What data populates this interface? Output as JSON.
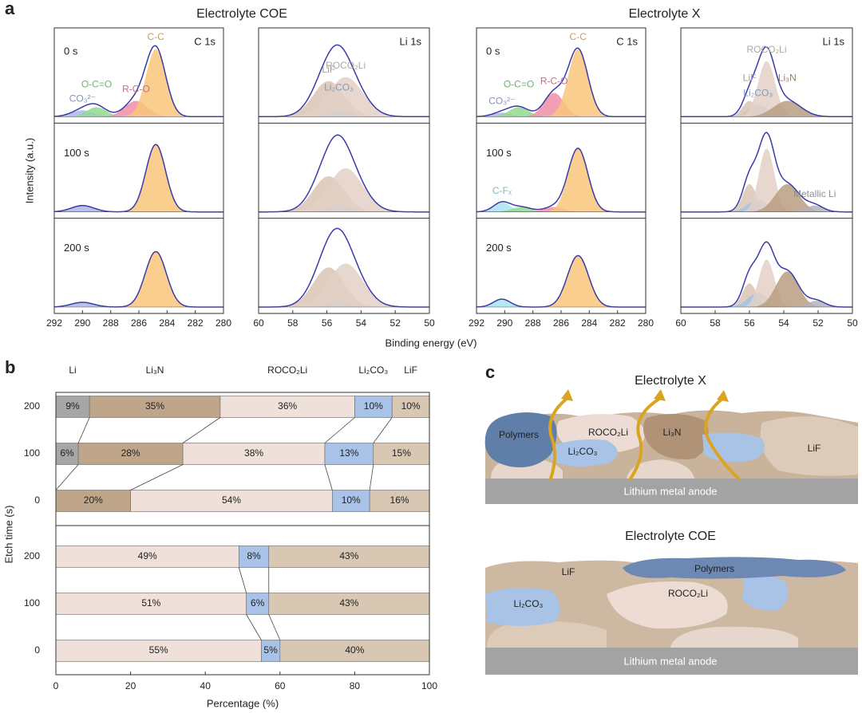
{
  "panel_labels": [
    "a",
    "b",
    "c"
  ],
  "chart_data": [
    {
      "type": "xps",
      "title": "Electrolyte COE",
      "xlabel": "Binding energy (eV)",
      "ylabel": "Intensity (a.u.)",
      "panels": [
        {
          "label": "C 1s",
          "xlim": [
            292,
            280
          ],
          "xticks": [
            292,
            290,
            288,
            286,
            284,
            282,
            280
          ],
          "rows": [
            {
              "label": "0 s",
              "peaks": [
                {
                  "name": "CO₃²⁻",
                  "color": "#aab6e6",
                  "center": 290.0,
                  "height": 0.08,
                  "width": 0.8
                },
                {
                  "name": "O-C=O",
                  "color": "#8fdc8f",
                  "center": 289.0,
                  "height": 0.12,
                  "width": 0.7
                },
                {
                  "name": "R-C-O",
                  "color": "#f08ea6",
                  "center": 286.2,
                  "height": 0.2,
                  "width": 0.8
                },
                {
                  "name": "C-C",
                  "color": "#f9c67a",
                  "center": 284.8,
                  "height": 0.85,
                  "width": 0.7
                }
              ]
            },
            {
              "label": "100 s",
              "peaks": [
                {
                  "color": "#aab6e6",
                  "center": 290.0,
                  "height": 0.08,
                  "width": 0.8
                },
                {
                  "color": "#f9c67a",
                  "center": 284.8,
                  "height": 0.85,
                  "width": 0.7
                }
              ]
            },
            {
              "label": "200 s",
              "peaks": [
                {
                  "color": "#aab6e6",
                  "center": 290.0,
                  "height": 0.06,
                  "width": 0.8
                },
                {
                  "color": "#f9c67a",
                  "center": 284.8,
                  "height": 0.7,
                  "width": 0.75
                }
              ]
            }
          ]
        },
        {
          "label": "Li 1s",
          "xlim": [
            60,
            50
          ],
          "xticks": [
            60,
            58,
            56,
            54,
            52,
            50
          ],
          "rows": [
            {
              "peaks": [
                {
                  "name": "LiF",
                  "color": "#d9c6b5",
                  "center": 55.9,
                  "height": 0.45,
                  "width": 0.9
                },
                {
                  "name": "Li₂CO₃",
                  "color": "#9fc4ea",
                  "center": 55.3,
                  "height": 0.08,
                  "width": 0.6
                },
                {
                  "name": "ROCO₂Li",
                  "color": "#e3d0c5",
                  "center": 54.9,
                  "height": 0.5,
                  "width": 1.0
                }
              ]
            },
            {
              "peaks": [
                {
                  "color": "#d9c6b5",
                  "center": 55.9,
                  "height": 0.45,
                  "width": 0.9
                },
                {
                  "color": "#9fc4ea",
                  "center": 55.3,
                  "height": 0.1,
                  "width": 0.6
                },
                {
                  "color": "#e3d0c5",
                  "center": 54.9,
                  "height": 0.55,
                  "width": 1.0
                }
              ]
            },
            {
              "peaks": [
                {
                  "color": "#d9c6b5",
                  "center": 55.9,
                  "height": 0.5,
                  "width": 0.9
                },
                {
                  "color": "#9fc4ea",
                  "center": 55.3,
                  "height": 0.08,
                  "width": 0.6
                },
                {
                  "color": "#e3d0c5",
                  "center": 54.9,
                  "height": 0.55,
                  "width": 1.0
                }
              ]
            }
          ]
        }
      ]
    },
    {
      "type": "xps",
      "title": "Electrolyte X",
      "panels": [
        {
          "label": "C 1s",
          "xlim": [
            292,
            280
          ],
          "xticks": [
            292,
            290,
            288,
            286,
            284,
            282,
            280
          ],
          "rows": [
            {
              "label": "0 s",
              "peaks": [
                {
                  "name": "CO₃²⁻",
                  "color": "#aab6e6",
                  "center": 290.2,
                  "height": 0.05,
                  "width": 0.7
                },
                {
                  "name": "O-C=O",
                  "color": "#8fdc8f",
                  "center": 289.0,
                  "height": 0.12,
                  "width": 0.7
                },
                {
                  "name": "R-C-O",
                  "color": "#f08ea6",
                  "center": 286.5,
                  "height": 0.3,
                  "width": 0.7
                },
                {
                  "name": "C-C",
                  "color": "#f9c67a",
                  "center": 284.8,
                  "height": 0.85,
                  "width": 0.7
                }
              ]
            },
            {
              "label": "100 s",
              "peaks": [
                {
                  "name": "C-Fₓ",
                  "color": "#a8e4f2",
                  "center": 290.2,
                  "height": 0.12,
                  "width": 0.6
                },
                {
                  "color": "#8fdc8f",
                  "center": 288.8,
                  "height": 0.06,
                  "width": 0.7
                },
                {
                  "color": "#f08ea6",
                  "center": 286.5,
                  "height": 0.06,
                  "width": 0.7
                },
                {
                  "color": "#f9c67a",
                  "center": 284.8,
                  "height": 0.8,
                  "width": 0.7
                }
              ]
            },
            {
              "label": "200 s",
              "peaks": [
                {
                  "color": "#a8e4f2",
                  "center": 290.2,
                  "height": 0.1,
                  "width": 0.6
                },
                {
                  "color": "#f9c67a",
                  "center": 284.8,
                  "height": 0.65,
                  "width": 0.75
                }
              ]
            }
          ]
        },
        {
          "label": "Li 1s",
          "xlim": [
            60,
            50
          ],
          "xticks": [
            60,
            58,
            56,
            54,
            52,
            50
          ],
          "rows": [
            {
              "peaks": [
                {
                  "name": "Li₂CO₃",
                  "color": "#9fc4ea",
                  "center": 55.5,
                  "height": 0.15,
                  "width": 0.6
                },
                {
                  "name": "LiF",
                  "color": "#d9c6b5",
                  "center": 56.0,
                  "height": 0.2,
                  "width": 0.4
                },
                {
                  "name": "ROCO₂Li",
                  "color": "#e3d0c5",
                  "center": 55.0,
                  "height": 0.7,
                  "width": 0.5
                },
                {
                  "name": "Li₃N",
                  "color": "#b99d80",
                  "center": 53.8,
                  "height": 0.2,
                  "width": 0.8
                }
              ]
            },
            {
              "peaks": [
                {
                  "color": "#d9c6b5",
                  "center": 56.0,
                  "height": 0.35,
                  "width": 0.4
                },
                {
                  "color": "#9fc4ea",
                  "center": 55.5,
                  "height": 0.15,
                  "width": 0.6
                },
                {
                  "color": "#e3d0c5",
                  "center": 55.0,
                  "height": 0.8,
                  "width": 0.45
                },
                {
                  "color": "#b99d80",
                  "center": 53.8,
                  "height": 0.35,
                  "width": 0.7
                },
                {
                  "name": "Metallic Li",
                  "color": "#b3b3bb",
                  "center": 52.2,
                  "height": 0.08,
                  "width": 0.5
                }
              ]
            },
            {
              "peaks": [
                {
                  "color": "#d9c6b5",
                  "center": 56.0,
                  "height": 0.3,
                  "width": 0.4
                },
                {
                  "color": "#9fc4ea",
                  "center": 55.5,
                  "height": 0.18,
                  "width": 0.6
                },
                {
                  "color": "#e3d0c5",
                  "center": 55.0,
                  "height": 0.6,
                  "width": 0.45
                },
                {
                  "color": "#b99d80",
                  "center": 53.8,
                  "height": 0.45,
                  "width": 0.65
                },
                {
                  "color": "#b3b3bb",
                  "center": 52.1,
                  "height": 0.08,
                  "width": 0.5
                }
              ]
            }
          ]
        }
      ]
    },
    {
      "type": "stacked-bar",
      "xlabel": "Percentage (%)",
      "ylabel": "Etch time (s)",
      "xlim": [
        0,
        100
      ],
      "xticks": [
        0,
        20,
        40,
        60,
        80,
        100
      ],
      "series": [
        {
          "name": "Li",
          "color": "#a6a6a6"
        },
        {
          "name": "Li₃N",
          "color": "#bfa68b"
        },
        {
          "name": "ROCO₂Li",
          "color": "#efe1d9"
        },
        {
          "name": "Li₂CO₃",
          "color": "#a9c3e8"
        },
        {
          "name": "LiF",
          "color": "#d7c7b3"
        }
      ],
      "groups": [
        {
          "categories": [
            "200",
            "100",
            "0"
          ],
          "values": [
            [
              9,
              6,
              0
            ],
            [
              35,
              28,
              20
            ],
            [
              36,
              38,
              54
            ],
            [
              10,
              13,
              10
            ],
            [
              10,
              15,
              16
            ]
          ],
          "value_labels": [
            [
              "9%",
              "6%",
              null
            ],
            [
              "35%",
              "28%",
              "20%"
            ],
            [
              "36%",
              "38%",
              "54%"
            ],
            [
              "10%",
              "13%",
              "10%"
            ],
            [
              "10%",
              "15%",
              "16%"
            ]
          ]
        },
        {
          "categories": [
            "200",
            "100",
            "0"
          ],
          "values": [
            [
              null,
              null,
              null
            ],
            [
              null,
              null,
              null
            ],
            [
              49,
              51,
              55
            ],
            [
              8,
              6,
              5
            ],
            [
              43,
              43,
              40
            ]
          ],
          "value_labels": [
            [
              null,
              null,
              null
            ],
            [
              null,
              null,
              null
            ],
            [
              "49%",
              "51%",
              "55%"
            ],
            [
              "8%",
              "6%",
              "5%"
            ],
            [
              "43%",
              "43%",
              "40%"
            ]
          ]
        }
      ]
    }
  ],
  "diagram": {
    "top": {
      "title": "Electrolyte X",
      "polymers": "Polymers",
      "roco2li": "ROCO₂Li",
      "li3n": "Li₃N",
      "li2co3": "Li₂CO₃",
      "lif": "LiF",
      "anode": "Lithium metal anode"
    },
    "bottom": {
      "title": "Electrolyte COE",
      "lif": "LiF",
      "polymers": "Polymers",
      "li2co3": "Li₂CO₃",
      "roco2li": "ROCO₂Li",
      "anode": "Lithium metal anode"
    }
  }
}
